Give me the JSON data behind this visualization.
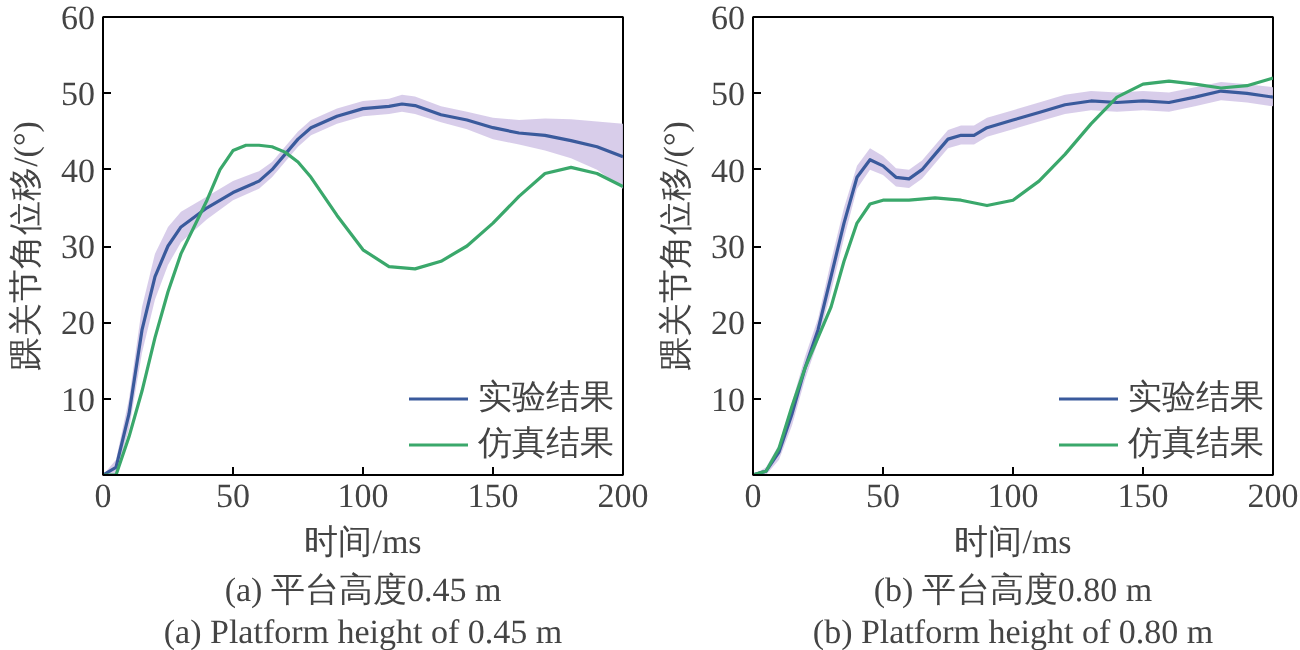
{
  "chart_data": [
    {
      "type": "line",
      "xlabel": "时间/ms",
      "ylabel": "踝关节角位移/(°)",
      "annotations": [
        "(a) 平台高度0.45 m",
        "(a) Platform height of 0.45 m"
      ],
      "xlim": [
        0,
        200
      ],
      "ylim": [
        0,
        60
      ],
      "xticks": [
        0,
        50,
        100,
        150,
        200
      ],
      "yticks": [
        10,
        20,
        30,
        40,
        50,
        60
      ],
      "grid": false,
      "legend": "bottom right",
      "series": [
        {
          "name": "实验结果",
          "color": "#3a5a9c",
          "x": [
            0,
            5,
            10,
            15,
            20,
            25,
            30,
            40,
            50,
            60,
            65,
            70,
            75,
            80,
            90,
            100,
            110,
            115,
            120,
            130,
            140,
            150,
            160,
            170,
            180,
            190,
            200
          ],
          "values": [
            0,
            1,
            8,
            19,
            26,
            30,
            32.5,
            35,
            37,
            38.5,
            40,
            42,
            44,
            45.5,
            47,
            48,
            48.3,
            48.6,
            48.4,
            47.2,
            46.5,
            45.5,
            44.8,
            44.5,
            43.8,
            43,
            41.7
          ],
          "lower": [
            0,
            0,
            6,
            16,
            23,
            27.5,
            30.5,
            33.5,
            36,
            37.5,
            39,
            41,
            43,
            44.5,
            46,
            47,
            47.3,
            47.6,
            47.3,
            46.2,
            45.3,
            44,
            43.3,
            42.5,
            41.5,
            40,
            37.5
          ],
          "upper": [
            0,
            2,
            10,
            22,
            29,
            32.5,
            34.5,
            36.5,
            38.5,
            39.8,
            41,
            43,
            45,
            46.5,
            48,
            49,
            49.3,
            49.8,
            49.6,
            48.3,
            47.6,
            46.8,
            46.5,
            46.7,
            46.6,
            46.3,
            46
          ]
        },
        {
          "name": "仿真结果",
          "color": "#3aa86b",
          "x": [
            0,
            5,
            10,
            15,
            20,
            25,
            30,
            40,
            45,
            50,
            55,
            60,
            65,
            70,
            75,
            80,
            90,
            100,
            110,
            120,
            130,
            140,
            150,
            160,
            170,
            180,
            190,
            200
          ],
          "values": [
            0,
            0,
            5,
            11,
            18,
            24,
            29,
            36,
            40,
            42.5,
            43.2,
            43.2,
            43,
            42.3,
            41,
            39,
            34,
            29.5,
            27.3,
            27,
            28,
            30,
            33,
            36.5,
            39.5,
            40.3,
            39.5,
            37.8
          ]
        }
      ]
    },
    {
      "type": "line",
      "xlabel": "时间/ms",
      "ylabel": "踝关节角位移/(°)",
      "annotations": [
        "(b) 平台高度0.80 m",
        "(b) Platform height of 0.80 m"
      ],
      "xlim": [
        0,
        200
      ],
      "ylim": [
        0,
        60
      ],
      "xticks": [
        0,
        50,
        100,
        150,
        200
      ],
      "yticks": [
        10,
        20,
        30,
        40,
        50,
        60
      ],
      "grid": false,
      "legend": "bottom right",
      "series": [
        {
          "name": "实验结果",
          "color": "#3a5a9c",
          "x": [
            0,
            5,
            10,
            15,
            20,
            25,
            30,
            35,
            40,
            45,
            50,
            55,
            60,
            65,
            70,
            75,
            80,
            85,
            90,
            100,
            110,
            120,
            130,
            140,
            150,
            160,
            170,
            180,
            190,
            200
          ],
          "values": [
            0,
            0.5,
            3,
            8,
            14,
            19,
            26,
            33,
            39,
            41.3,
            40.5,
            39,
            38.8,
            40,
            42,
            44,
            44.5,
            44.5,
            45.5,
            46.5,
            47.5,
            48.5,
            49,
            48.8,
            49,
            48.8,
            49.5,
            50.3,
            50,
            49.5
          ],
          "lower": [
            0,
            0,
            2,
            6.5,
            12.5,
            17.5,
            24,
            31,
            37.5,
            40,
            39.3,
            37.8,
            37.6,
            38.8,
            40.8,
            42.8,
            43.3,
            43.3,
            44.3,
            45.3,
            46.3,
            47.3,
            47.8,
            47.6,
            47.8,
            47.6,
            48.3,
            49.1,
            48.8,
            48.3
          ],
          "upper": [
            0,
            1,
            4,
            9.5,
            15.5,
            20.5,
            28,
            35,
            40.5,
            42.8,
            41.8,
            40.2,
            40,
            41.2,
            43.2,
            45.2,
            45.8,
            45.8,
            46.8,
            47.8,
            48.8,
            49.8,
            50.3,
            50.1,
            50.3,
            50.1,
            50.8,
            51.5,
            51.2,
            50.8
          ]
        },
        {
          "name": "仿真结果",
          "color": "#3aa86b",
          "x": [
            0,
            5,
            10,
            15,
            20,
            25,
            30,
            35,
            40,
            45,
            50,
            60,
            70,
            80,
            90,
            100,
            110,
            120,
            130,
            140,
            150,
            160,
            170,
            180,
            190,
            200
          ],
          "values": [
            0,
            0.5,
            3.5,
            9,
            14,
            18,
            22,
            28,
            33,
            35.5,
            36,
            36,
            36.3,
            36,
            35.3,
            36,
            38.5,
            42,
            46,
            49.5,
            51.2,
            51.6,
            51.2,
            50.7,
            51,
            52
          ]
        }
      ]
    }
  ]
}
